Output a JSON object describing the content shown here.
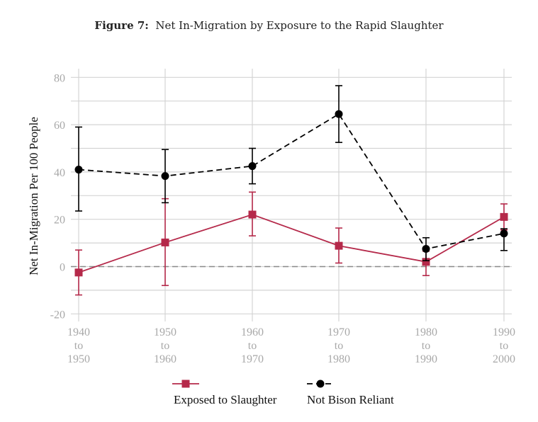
{
  "figure": {
    "label": "Figure 7:",
    "caption": "Net In-Migration by Exposure to the Rapid Slaughter"
  },
  "chart_data": {
    "type": "line",
    "title": "Net In-Migration by Exposure to the Rapid Slaughter",
    "xlabel": "",
    "ylabel": "Net In-Migration Per 100 People",
    "categories": [
      [
        "1940",
        "to",
        "1950"
      ],
      [
        "1950",
        "to",
        "1960"
      ],
      [
        "1960",
        "to",
        "1970"
      ],
      [
        "1970",
        "to",
        "1980"
      ],
      [
        "1980",
        "to",
        "1990"
      ],
      [
        "1990",
        "to",
        "2000"
      ]
    ],
    "ylim": [
      -20,
      80
    ],
    "yticks": [
      -20,
      0,
      20,
      40,
      60,
      80
    ],
    "grid": true,
    "reference_line": 0,
    "legend_position": "bottom",
    "series": [
      {
        "name": "Exposed to Slaughter",
        "color": "#b5294a",
        "marker": "square",
        "line_style": "solid",
        "values": [
          -2.5,
          10.2,
          22.0,
          8.8,
          2.0,
          21.0
        ],
        "ci_low": [
          -12.0,
          -8.0,
          13.0,
          1.5,
          -3.8,
          15.5
        ],
        "ci_high": [
          7.0,
          28.7,
          31.5,
          16.3,
          6.5,
          26.5
        ]
      },
      {
        "name": "Not Bison Reliant",
        "color": "#000000",
        "marker": "circle",
        "line_style": "dashed",
        "values": [
          41.0,
          38.3,
          42.5,
          64.5,
          7.5,
          14.0
        ],
        "ci_low": [
          23.5,
          27.0,
          35.0,
          52.5,
          2.5,
          6.8
        ],
        "ci_high": [
          59.0,
          49.5,
          50.0,
          76.5,
          12.2,
          16.0
        ]
      }
    ]
  }
}
